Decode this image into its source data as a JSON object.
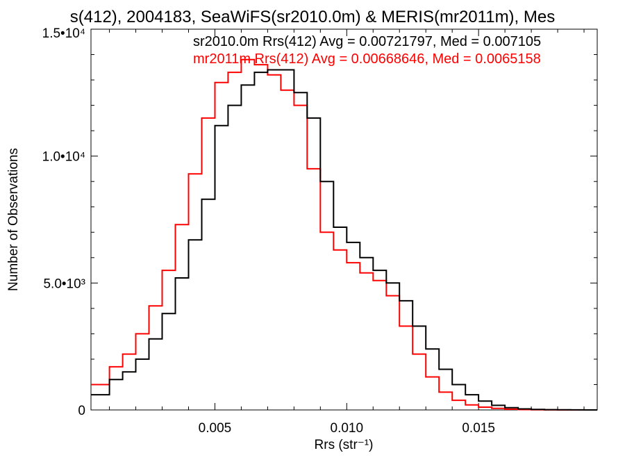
{
  "chart_data": {
    "type": "histogram",
    "title": "s(412), 2004183, SeaWiFS(sr2010.0m) & MERIS(mr2011m), Mes",
    "xlabel": "Rrs (str⁻¹)",
    "ylabel": "Number of Observations",
    "xlim": [
      0.0003,
      0.0195
    ],
    "ylim": [
      0,
      15000
    ],
    "x_ticks": [
      {
        "value": 0.005,
        "label": "0.005"
      },
      {
        "value": 0.01,
        "label": "0.010"
      },
      {
        "value": 0.015,
        "label": "0.015"
      }
    ],
    "y_ticks": [
      {
        "value": 0,
        "label": "0"
      },
      {
        "value": 5000,
        "label": "5.0•10³"
      },
      {
        "value": 10000,
        "label": "1.0•10⁴"
      },
      {
        "value": 15000,
        "label": "1.5•10⁴"
      }
    ],
    "grid": false,
    "legend_position": "top-right",
    "series": [
      {
        "name": "sr2010.0m Rrs(412) Avg = 0.00721797, Med = 0.007105",
        "color": "#000000",
        "x": [
          0.0003,
          0.001,
          0.0015,
          0.002,
          0.0025,
          0.003,
          0.0035,
          0.004,
          0.0045,
          0.005,
          0.0055,
          0.006,
          0.0065,
          0.007,
          0.0075,
          0.008,
          0.0085,
          0.009,
          0.0095,
          0.01,
          0.0105,
          0.011,
          0.0115,
          0.012,
          0.0125,
          0.013,
          0.0135,
          0.014,
          0.0145,
          0.015,
          0.0155,
          0.016,
          0.0165,
          0.017,
          0.0175,
          0.018,
          0.0185,
          0.019,
          0.0195
        ],
        "values": [
          600,
          1200,
          1500,
          2000,
          2800,
          3800,
          5200,
          6700,
          8300,
          11200,
          12000,
          12800,
          13300,
          13400,
          13400,
          12500,
          11500,
          9000,
          7200,
          6600,
          6000,
          5500,
          5000,
          4300,
          3300,
          2400,
          1600,
          1000,
          600,
          350,
          180,
          90,
          40,
          20,
          10,
          5,
          2,
          0,
          0
        ]
      },
      {
        "name": "mr2011m Rrs(412) Avg = 0.00668646, Med = 0.0065158",
        "color": "#ff0000",
        "x": [
          0.0003,
          0.001,
          0.0015,
          0.002,
          0.0025,
          0.003,
          0.0035,
          0.004,
          0.0045,
          0.005,
          0.0055,
          0.006,
          0.0065,
          0.007,
          0.0075,
          0.008,
          0.0085,
          0.009,
          0.0095,
          0.01,
          0.0105,
          0.011,
          0.0115,
          0.012,
          0.0125,
          0.013,
          0.0135,
          0.014,
          0.0145,
          0.015,
          0.0155,
          0.016,
          0.0165,
          0.017,
          0.0175,
          0.018,
          0.0185,
          0.019,
          0.0195
        ],
        "values": [
          1000,
          1700,
          2200,
          3000,
          4100,
          5500,
          7300,
          9300,
          11500,
          12900,
          13300,
          13800,
          13600,
          13200,
          12600,
          12000,
          9500,
          7000,
          6300,
          5800,
          5400,
          5100,
          4500,
          3300,
          2200,
          1300,
          700,
          380,
          200,
          110,
          60,
          30,
          15,
          8,
          3,
          1,
          0,
          0,
          0
        ]
      }
    ]
  }
}
